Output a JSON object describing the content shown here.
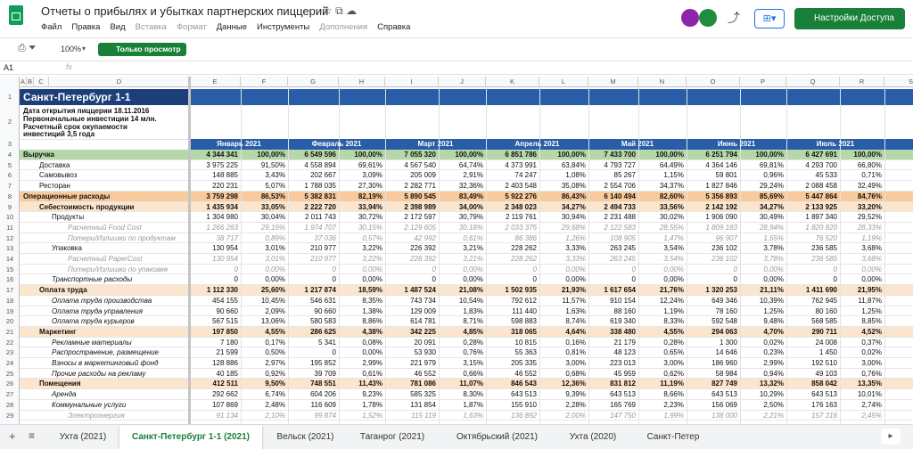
{
  "header": {
    "title": "Отчеты о прибылях и убытках партнерских пиццерий",
    "menu": [
      "Файл",
      "Правка",
      "Вид",
      "Вставка",
      "Формат",
      "Данные",
      "Инструменты",
      "Дополнения",
      "Справка"
    ],
    "share_button": "Настройки Доступа"
  },
  "toolbar": {
    "zoom": "100%",
    "mode": "Только просмотр"
  },
  "formula_bar": {
    "cell": "A1",
    "fx": "fx"
  },
  "columns": [
    "A",
    "B",
    "C",
    "D",
    "E",
    "F",
    "G",
    "H",
    "I",
    "J",
    "K",
    "L",
    "M",
    "N",
    "O",
    "P",
    "Q",
    "R",
    "S"
  ],
  "sheet": {
    "top_row_numbers": [
      1,
      2,
      3
    ],
    "title": "Санкт-Петербург 1-1",
    "info": [
      "Дата открытия пиццерии 18.11.2016",
      "Первоначальные инвестиции 14 млн.",
      "Расчетный срок окупаемости",
      "инвестиций 3,5 года"
    ],
    "months": [
      "Январь 2021",
      "Февраль 2021",
      "Март 2021",
      "Апрель 2021",
      "Май 2021",
      "Июнь 2021",
      "Июль 2021"
    ],
    "rows": [
      {
        "num": 4,
        "label": "Выручка",
        "style": "green",
        "level": 0,
        "cells": [
          "4 344 341",
          "100,00%",
          "6 549 596",
          "100,00%",
          "7 055 320",
          "100,00%",
          "6 851 786",
          "100,00%",
          "7 433 700",
          "100,00%",
          "6 251 794",
          "100,00%",
          "6 427 691",
          "100,00%"
        ]
      },
      {
        "num": 5,
        "label": "Доставка",
        "style": "plain",
        "level": 1,
        "cells": [
          "3 975 225",
          "91,50%",
          "4 558 894",
          "69,61%",
          "4 567 540",
          "64,74%",
          "4 373 991",
          "63,84%",
          "4 793 727",
          "64,49%",
          "4 364 146",
          "69,81%",
          "4 293 700",
          "66,80%"
        ]
      },
      {
        "num": 6,
        "label": "Самовывоз",
        "style": "plain",
        "level": 1,
        "cells": [
          "148 885",
          "3,43%",
          "202 667",
          "3,09%",
          "205 009",
          "2,91%",
          "74 247",
          "1,08%",
          "85 267",
          "1,15%",
          "59 801",
          "0,96%",
          "45 533",
          "0,71%"
        ]
      },
      {
        "num": 7,
        "label": "Ресторан",
        "style": "plain",
        "level": 1,
        "cells": [
          "220 231",
          "5,07%",
          "1 788 035",
          "27,30%",
          "2 282 771",
          "32,36%",
          "2 403 548",
          "35,08%",
          "2 554 706",
          "34,37%",
          "1 827 846",
          "29,24%",
          "2 088 458",
          "32,49%"
        ]
      },
      {
        "num": 8,
        "label": "Операционные расходы",
        "style": "orange",
        "level": 0,
        "cells": [
          "3 759 298",
          "86,53%",
          "5 382 831",
          "82,19%",
          "5 890 545",
          "83,49%",
          "5 922 276",
          "86,43%",
          "6 140 494",
          "82,60%",
          "5 356 893",
          "85,69%",
          "5 447 864",
          "84,76%"
        ]
      },
      {
        "num": 9,
        "label": "Себестоимость продукции",
        "style": "peach",
        "level": 1,
        "cells": [
          "1 435 934",
          "33,05%",
          "2 222 720",
          "33,94%",
          "2 398 989",
          "34,00%",
          "2 348 023",
          "34,27%",
          "2 494 733",
          "33,56%",
          "2 142 192",
          "34,27%",
          "2 133 925",
          "33,20%"
        ]
      },
      {
        "num": 10,
        "label": "Продукты",
        "style": "plain",
        "level": 2,
        "cells": [
          "1 304 980",
          "30,04%",
          "2 011 743",
          "30,72%",
          "2 172 597",
          "30,79%",
          "2 119 761",
          "30,94%",
          "2 231 488",
          "30,02%",
          "1 906 090",
          "30,49%",
          "1 897 340",
          "29,52%"
        ]
      },
      {
        "num": 11,
        "label": "Расчетный Food Cost",
        "style": "note",
        "level": 3,
        "cells": [
          "1 266 263",
          "29,15%",
          "1 974 707",
          "30,15%",
          "2 129 605",
          "30,18%",
          "2 033 375",
          "29,68%",
          "2 122 583",
          "28,55%",
          "1 809 183",
          "28,94%",
          "1 820 820",
          "28,33%"
        ]
      },
      {
        "num": 12,
        "label": "Потери/Излишки по продуктам",
        "style": "note",
        "level": 3,
        "cells": [
          "38 717",
          "0,89%",
          "37 036",
          "0,57%",
          "42 992",
          "0,61%",
          "86 386",
          "1,26%",
          "108 905",
          "1,47%",
          "96 907",
          "1,55%",
          "76 520",
          "1,19%"
        ]
      },
      {
        "num": 13,
        "label": "Упаковка",
        "style": "plain",
        "level": 2,
        "cells": [
          "130 954",
          "3,01%",
          "210 977",
          "3,22%",
          "226 392",
          "3,21%",
          "228 262",
          "3,33%",
          "263 245",
          "3,54%",
          "236 102",
          "3,78%",
          "236 585",
          "3,68%"
        ]
      },
      {
        "num": 14,
        "label": "Расчетный PaperCost",
        "style": "note",
        "level": 3,
        "cells": [
          "130 954",
          "3,01%",
          "210 977",
          "3,22%",
          "226 392",
          "3,21%",
          "228 262",
          "3,33%",
          "263 245",
          "3,54%",
          "236 102",
          "3,78%",
          "236 585",
          "3,68%"
        ]
      },
      {
        "num": 15,
        "label": "Потери/Излишки по упаковке",
        "style": "note",
        "level": 3,
        "cells": [
          "0",
          "0,00%",
          "0",
          "0,00%",
          "0",
          "0,00%",
          "0",
          "0,00%",
          "0",
          "0,00%",
          "0",
          "0,00%",
          "0",
          "0,00%"
        ]
      },
      {
        "num": 16,
        "label": "Транспортные расходы",
        "style": "italic",
        "level": 2,
        "cells": [
          "0",
          "0,00%",
          "0",
          "0,00%",
          "0",
          "0,00%",
          "0",
          "0,00%",
          "0",
          "0,00%",
          "0",
          "0,00%",
          "0",
          "0,00%"
        ]
      },
      {
        "num": 17,
        "label": "Оплата труда",
        "style": "peach",
        "level": 1,
        "cells": [
          "1 112 330",
          "25,60%",
          "1 217 874",
          "18,59%",
          "1 487 524",
          "21,08%",
          "1 502 935",
          "21,93%",
          "1 617 654",
          "21,76%",
          "1 320 253",
          "21,11%",
          "1 411 690",
          "21,95%"
        ]
      },
      {
        "num": 18,
        "label": "Оплата труда производства",
        "style": "italic",
        "level": 2,
        "cells": [
          "454 155",
          "10,45%",
          "546 631",
          "8,35%",
          "743 734",
          "10,54%",
          "792 612",
          "11,57%",
          "910 154",
          "12,24%",
          "649 346",
          "10,39%",
          "762 945",
          "11,87%"
        ]
      },
      {
        "num": 19,
        "label": "Оплата труда управления",
        "style": "italic",
        "level": 2,
        "cells": [
          "90 660",
          "2,09%",
          "90 660",
          "1,38%",
          "129 009",
          "1,83%",
          "111 440",
          "1,63%",
          "88 160",
          "1,19%",
          "78 160",
          "1,25%",
          "80 160",
          "1,25%"
        ]
      },
      {
        "num": 20,
        "label": "Оплата труда курьеров",
        "style": "italic",
        "level": 2,
        "cells": [
          "567 515",
          "13,06%",
          "580 583",
          "8,86%",
          "614 781",
          "8,71%",
          "598 883",
          "8,74%",
          "619 340",
          "8,33%",
          "592 548",
          "9,48%",
          "568 585",
          "8,85%"
        ]
      },
      {
        "num": 21,
        "label": "Маркетинг",
        "style": "peach",
        "level": 1,
        "cells": [
          "197 850",
          "4,55%",
          "286 625",
          "4,38%",
          "342 225",
          "4,85%",
          "318 065",
          "4,64%",
          "338 480",
          "4,55%",
          "294 063",
          "4,70%",
          "290 711",
          "4,52%"
        ]
      },
      {
        "num": 22,
        "label": "Рекламные материалы",
        "style": "italic",
        "level": 2,
        "cells": [
          "7 180",
          "0,17%",
          "5 341",
          "0,08%",
          "20 091",
          "0,28%",
          "10 815",
          "0,16%",
          "21 179",
          "0,28%",
          "1 300",
          "0,02%",
          "24 008",
          "0,37%"
        ]
      },
      {
        "num": 23,
        "label": "Распространение, размещение",
        "style": "italic",
        "level": 2,
        "cells": [
          "21 599",
          "0,50%",
          "0",
          "0,00%",
          "53 930",
          "0,76%",
          "55 363",
          "0,81%",
          "48 123",
          "0,65%",
          "14 646",
          "0,23%",
          "1 450",
          "0,02%"
        ]
      },
      {
        "num": 24,
        "label": "Взносы в маркетинговый фонд",
        "style": "italic",
        "level": 2,
        "cells": [
          "128 886",
          "2,97%",
          "195 852",
          "2,99%",
          "221 979",
          "3,15%",
          "205 335",
          "3,00%",
          "223 013",
          "3,00%",
          "186 960",
          "2,99%",
          "192 510",
          "3,00%"
        ]
      },
      {
        "num": 25,
        "label": "Прочие расходы на рекламу",
        "style": "italic",
        "level": 2,
        "cells": [
          "40 185",
          "0,92%",
          "39 709",
          "0,61%",
          "46 552",
          "0,66%",
          "46 552",
          "0,68%",
          "45 959",
          "0,62%",
          "58 984",
          "0,94%",
          "49 103",
          "0,76%"
        ]
      },
      {
        "num": 26,
        "label": "Помещения",
        "style": "peach",
        "level": 1,
        "cells": [
          "412 511",
          "9,50%",
          "748 551",
          "11,43%",
          "781 086",
          "11,07%",
          "846 543",
          "12,36%",
          "831 812",
          "11,19%",
          "827 749",
          "13,32%",
          "858 042",
          "13,35%"
        ]
      },
      {
        "num": 27,
        "label": "Аренда",
        "style": "italic",
        "level": 2,
        "cells": [
          "292 662",
          "6,74%",
          "604 206",
          "9,23%",
          "585 325",
          "8,30%",
          "643 513",
          "9,39%",
          "643 513",
          "8,66%",
          "643 513",
          "10,29%",
          "643 513",
          "10,01%"
        ]
      },
      {
        "num": 28,
        "label": "Коммунальные услуги",
        "style": "italic",
        "level": 2,
        "cells": [
          "107 869",
          "2,48%",
          "116 609",
          "1,78%",
          "131 854",
          "1,87%",
          "155 910",
          "2,28%",
          "165 769",
          "2,23%",
          "156 069",
          "2,50%",
          "176 163",
          "2,74%"
        ]
      },
      {
        "num": 29,
        "label": "Электроэнергия",
        "style": "note",
        "level": 3,
        "cells": [
          "91 134",
          "2,10%",
          "99 874",
          "1,52%",
          "115 119",
          "1,63%",
          "136 892",
          "2,00%",
          "147 750",
          "1,99%",
          "138 000",
          "2,21%",
          "157 316",
          "2,45%"
        ]
      }
    ]
  },
  "tabs": [
    "Ухта (2021)",
    "Санкт-Петербург 1-1 (2021)",
    "Вельск (2021)",
    "Таганрог (2021)",
    "Октябрьский (2021)",
    "Ухта (2020)",
    "Санкт-Петер"
  ],
  "active_tab": 1
}
